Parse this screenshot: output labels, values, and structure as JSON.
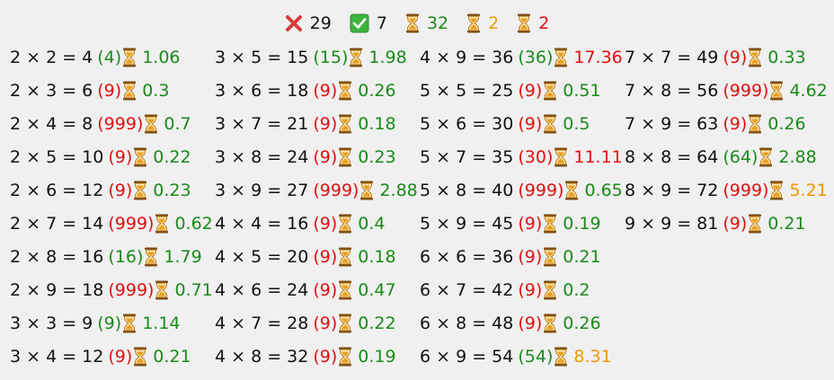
{
  "summary": {
    "wrong_count": "29",
    "correct_count": "7",
    "fast_count": "32",
    "medium_count": "2",
    "slow_count": "2"
  },
  "colors": {
    "green": "#1a8a1a",
    "red": "#e01010",
    "orange": "#ee9a00",
    "check_bg": "#3cb43c",
    "cross": "#d93a3a",
    "hourglass": "#e8a020"
  },
  "icons": [
    "cross-icon",
    "checkmark-icon",
    "hourglass-icon"
  ],
  "columns": [
    [
      {
        "eq": "2 × 2 = 4",
        "ans": "(4)",
        "ans_ok": true,
        "time": "1.06",
        "time_color": "green"
      },
      {
        "eq": "2 × 3 = 6",
        "ans": "(9)",
        "ans_ok": false,
        "time": "0.3",
        "time_color": "green"
      },
      {
        "eq": "2 × 4 = 8",
        "ans": "(999)",
        "ans_ok": false,
        "time": "0.7",
        "time_color": "green"
      },
      {
        "eq": "2 × 5 = 10",
        "ans": "(9)",
        "ans_ok": false,
        "time": "0.22",
        "time_color": "green"
      },
      {
        "eq": "2 × 6 = 12",
        "ans": "(9)",
        "ans_ok": false,
        "time": "0.23",
        "time_color": "green"
      },
      {
        "eq": "2 × 7 = 14",
        "ans": "(999)",
        "ans_ok": false,
        "time": "0.62",
        "time_color": "green"
      },
      {
        "eq": "2 × 8 = 16",
        "ans": "(16)",
        "ans_ok": true,
        "time": "1.79",
        "time_color": "green"
      },
      {
        "eq": "2 × 9 = 18",
        "ans": "(999)",
        "ans_ok": false,
        "time": "0.71",
        "time_color": "green"
      },
      {
        "eq": "3 × 3 = 9",
        "ans": "(9)",
        "ans_ok": true,
        "time": "1.14",
        "time_color": "green"
      },
      {
        "eq": "3 × 4 = 12",
        "ans": "(9)",
        "ans_ok": false,
        "time": "0.21",
        "time_color": "green"
      }
    ],
    [
      {
        "eq": "3 × 5 = 15",
        "ans": "(15)",
        "ans_ok": true,
        "time": "1.98",
        "time_color": "green"
      },
      {
        "eq": "3 × 6 = 18",
        "ans": "(9)",
        "ans_ok": false,
        "time": "0.26",
        "time_color": "green"
      },
      {
        "eq": "3 × 7 = 21",
        "ans": "(9)",
        "ans_ok": false,
        "time": "0.18",
        "time_color": "green"
      },
      {
        "eq": "3 × 8 = 24",
        "ans": "(9)",
        "ans_ok": false,
        "time": "0.23",
        "time_color": "green"
      },
      {
        "eq": "3 × 9 = 27",
        "ans": "(999)",
        "ans_ok": false,
        "time": "2.88",
        "time_color": "green"
      },
      {
        "eq": "4 × 4 = 16",
        "ans": "(9)",
        "ans_ok": false,
        "time": "0.4",
        "time_color": "green"
      },
      {
        "eq": "4 × 5 = 20",
        "ans": "(9)",
        "ans_ok": false,
        "time": "0.18",
        "time_color": "green"
      },
      {
        "eq": "4 × 6 = 24",
        "ans": "(9)",
        "ans_ok": false,
        "time": "0.47",
        "time_color": "green"
      },
      {
        "eq": "4 × 7 = 28",
        "ans": "(9)",
        "ans_ok": false,
        "time": "0.22",
        "time_color": "green"
      },
      {
        "eq": "4 × 8 = 32",
        "ans": "(9)",
        "ans_ok": false,
        "time": "0.19",
        "time_color": "green"
      }
    ],
    [
      {
        "eq": "4 × 9 = 36",
        "ans": "(36)",
        "ans_ok": true,
        "time": "17.36",
        "time_color": "red"
      },
      {
        "eq": "5 × 5 = 25",
        "ans": "(9)",
        "ans_ok": false,
        "time": "0.51",
        "time_color": "green"
      },
      {
        "eq": "5 × 6 = 30",
        "ans": "(9)",
        "ans_ok": false,
        "time": "0.5",
        "time_color": "green"
      },
      {
        "eq": "5 × 7 = 35",
        "ans": "(30)",
        "ans_ok": false,
        "time": "11.11",
        "time_color": "red"
      },
      {
        "eq": "5 × 8 = 40",
        "ans": "(999)",
        "ans_ok": false,
        "time": "0.65",
        "time_color": "green"
      },
      {
        "eq": "5 × 9 = 45",
        "ans": "(9)",
        "ans_ok": false,
        "time": "0.19",
        "time_color": "green"
      },
      {
        "eq": "6 × 6 = 36",
        "ans": "(9)",
        "ans_ok": false,
        "time": "0.21",
        "time_color": "green"
      },
      {
        "eq": "6 × 7 = 42",
        "ans": "(9)",
        "ans_ok": false,
        "time": "0.2",
        "time_color": "green"
      },
      {
        "eq": "6 × 8 = 48",
        "ans": "(9)",
        "ans_ok": false,
        "time": "0.26",
        "time_color": "green"
      },
      {
        "eq": "6 × 9 = 54",
        "ans": "(54)",
        "ans_ok": true,
        "time": "8.31",
        "time_color": "orange"
      }
    ],
    [
      {
        "eq": "7 × 7 = 49",
        "ans": "(9)",
        "ans_ok": false,
        "time": "0.33",
        "time_color": "green"
      },
      {
        "eq": "7 × 8 = 56",
        "ans": "(999)",
        "ans_ok": false,
        "time": "4.62",
        "time_color": "green"
      },
      {
        "eq": "7 × 9 = 63",
        "ans": "(9)",
        "ans_ok": false,
        "time": "0.26",
        "time_color": "green"
      },
      {
        "eq": "8 × 8 = 64",
        "ans": "(64)",
        "ans_ok": true,
        "time": "2.88",
        "time_color": "green"
      },
      {
        "eq": "8 × 9 = 72",
        "ans": "(999)",
        "ans_ok": false,
        "time": "5.21",
        "time_color": "orange"
      },
      {
        "eq": "9 × 9 = 81",
        "ans": "(9)",
        "ans_ok": false,
        "time": "0.21",
        "time_color": "green"
      }
    ]
  ]
}
